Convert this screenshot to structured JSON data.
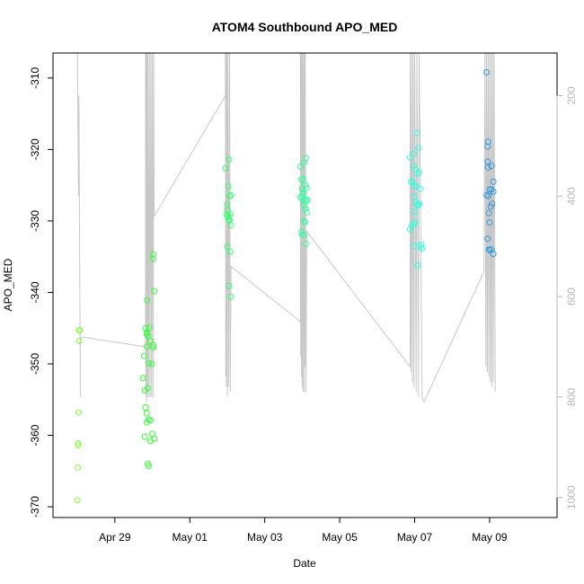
{
  "chart_data": {
    "type": "scatter",
    "title": "ATOM4 Southbound APO_MED",
    "xlabel": "Date",
    "ylabel": "APO_MED",
    "x_range_days": [
      -1.65,
      11.8
    ],
    "xticks": [
      {
        "label": "Apr 29",
        "day": 0
      },
      {
        "label": "May 01",
        "day": 2
      },
      {
        "label": "May 03",
        "day": 4
      },
      {
        "label": "May 05",
        "day": 6
      },
      {
        "label": "May 07",
        "day": 8
      },
      {
        "label": "May 09",
        "day": 10
      }
    ],
    "ylim": [
      -371.5,
      -306.5
    ],
    "yticks": [
      -370,
      -360,
      -350,
      -340,
      -330,
      -320,
      -310
    ],
    "right_axis": {
      "ticks": [
        200,
        400,
        600,
        800,
        1000
      ],
      "range_top_down": [
        115,
        1040
      ],
      "color": "#b8b8b8"
    },
    "colors": {
      "series_1": "#7fff33",
      "series_2": "#33ff33",
      "series_3": "#33ff66",
      "series_4": "#33ff99",
      "series_5": "#33ffdd",
      "series_6": "#3399dd",
      "pressure_line": "#c8c8c8"
    },
    "series": [
      {
        "color_key": "series_1",
        "points": [
          [
            -0.95,
            -345.3
          ],
          [
            -0.95,
            -346.8
          ],
          [
            -0.97,
            -356.8
          ],
          [
            -0.98,
            -361.1
          ],
          [
            -0.98,
            -361.4
          ],
          [
            -0.99,
            -364.5
          ],
          [
            -1.0,
            -369.1
          ],
          [
            -0.93,
            -345.3
          ]
        ]
      },
      {
        "color_key": "series_2",
        "points": [
          [
            0.85,
            -358.2
          ],
          [
            0.9,
            -357.8
          ],
          [
            0.95,
            -357.9
          ],
          [
            1.0,
            -359.8
          ],
          [
            0.8,
            -360.2
          ],
          [
            0.95,
            -360.8
          ],
          [
            1.05,
            -360.5
          ],
          [
            0.88,
            -364.0
          ],
          [
            0.9,
            -364.3
          ],
          [
            0.75,
            -352.0
          ],
          [
            0.8,
            -353.7
          ],
          [
            0.88,
            -353.4
          ],
          [
            0.82,
            -356.1
          ],
          [
            0.85,
            -356.9
          ],
          [
            0.78,
            -348.9
          ],
          [
            0.9,
            -349.9
          ],
          [
            0.99,
            -350.0
          ],
          [
            0.85,
            -347.6
          ],
          [
            0.95,
            -346.8
          ],
          [
            1.02,
            -347.4
          ],
          [
            1.03,
            -347.7
          ],
          [
            0.82,
            -345.0
          ],
          [
            0.85,
            -345.6
          ],
          [
            0.85,
            -345.8
          ],
          [
            0.88,
            -346.1
          ],
          [
            0.92,
            -344.9
          ],
          [
            0.86,
            -341.1
          ],
          [
            1.05,
            -339.8
          ],
          [
            1.02,
            -335.3
          ],
          [
            1.03,
            -334.7
          ]
        ]
      },
      {
        "color_key": "series_3",
        "points": [
          [
            2.95,
            -322.6
          ],
          [
            3.05,
            -321.4
          ],
          [
            3.0,
            -328.4
          ],
          [
            3.02,
            -329.3
          ],
          [
            2.98,
            -329.1
          ],
          [
            3.08,
            -329.0
          ],
          [
            3.03,
            -325.2
          ],
          [
            3.06,
            -326.5
          ],
          [
            3.1,
            -326.4
          ],
          [
            3.0,
            -327.7
          ],
          [
            3.06,
            -329.9
          ],
          [
            3.1,
            -330.6
          ],
          [
            3.0,
            -333.6
          ],
          [
            3.08,
            -334.3
          ],
          [
            3.05,
            -339.1
          ],
          [
            3.1,
            -340.6
          ],
          [
            3.02,
            -329.4
          ],
          [
            3.04,
            -329.8
          ]
        ]
      },
      {
        "color_key": "series_4",
        "points": [
          [
            4.95,
            -322.4
          ],
          [
            5.05,
            -321.8
          ],
          [
            5.1,
            -321.2
          ],
          [
            4.98,
            -324.2
          ],
          [
            5.0,
            -325.5
          ],
          [
            5.03,
            -326.0
          ],
          [
            5.08,
            -325.0
          ],
          [
            5.12,
            -325.4
          ],
          [
            4.95,
            -326.6
          ],
          [
            4.98,
            -326.8
          ],
          [
            5.02,
            -326.2
          ],
          [
            5.07,
            -327.3
          ],
          [
            5.1,
            -327.0
          ],
          [
            5.15,
            -327.1
          ],
          [
            5.05,
            -327.8
          ],
          [
            5.08,
            -328.3
          ],
          [
            5.12,
            -328.8
          ],
          [
            5.06,
            -330.0
          ],
          [
            5.07,
            -330.2
          ],
          [
            4.98,
            -331.5
          ],
          [
            5.0,
            -331.9
          ],
          [
            5.05,
            -332.0
          ],
          [
            5.1,
            -333.2
          ],
          [
            5.02,
            -324.1
          ]
        ]
      },
      {
        "color_key": "series_5",
        "points": [
          [
            7.88,
            -321.1
          ],
          [
            7.97,
            -320.6
          ],
          [
            8.1,
            -319.8
          ],
          [
            8.07,
            -317.7
          ],
          [
            7.97,
            -322.3
          ],
          [
            8.03,
            -322.8
          ],
          [
            8.08,
            -323.4
          ],
          [
            8.12,
            -323.2
          ],
          [
            7.95,
            -324.5
          ],
          [
            7.98,
            -325.0
          ],
          [
            8.05,
            -325.2
          ],
          [
            8.15,
            -325.5
          ],
          [
            7.9,
            -324.5
          ],
          [
            8.0,
            -326.6
          ],
          [
            8.03,
            -327.4
          ],
          [
            8.07,
            -327.8
          ],
          [
            8.1,
            -327.8
          ],
          [
            8.12,
            -327.6
          ],
          [
            8.0,
            -328.7
          ],
          [
            7.92,
            -330.7
          ],
          [
            7.88,
            -331.2
          ],
          [
            7.98,
            -330.4
          ],
          [
            8.02,
            -330.1
          ],
          [
            7.98,
            -333.5
          ],
          [
            8.15,
            -333.6
          ],
          [
            8.18,
            -333.3
          ],
          [
            8.2,
            -333.9
          ],
          [
            8.08,
            -336.2
          ]
        ]
      },
      {
        "color_key": "series_6",
        "points": [
          [
            9.92,
            -309.2
          ],
          [
            9.96,
            -318.9
          ],
          [
            9.95,
            -319.6
          ],
          [
            9.95,
            -321.7
          ],
          [
            9.96,
            -322.5
          ],
          [
            10.05,
            -322.3
          ],
          [
            10.0,
            -325.6
          ],
          [
            10.05,
            -325.6
          ],
          [
            10.1,
            -324.5
          ],
          [
            10.1,
            -325.9
          ],
          [
            9.92,
            -326.4
          ],
          [
            9.97,
            -326.5
          ],
          [
            10.07,
            -327.6
          ],
          [
            10.03,
            -328.0
          ],
          [
            9.98,
            -328.9
          ],
          [
            10.0,
            -330.2
          ],
          [
            9.95,
            -332.5
          ],
          [
            9.98,
            -334.0
          ],
          [
            10.05,
            -334.0
          ],
          [
            10.1,
            -334.6
          ],
          [
            10.0,
            -334.1
          ]
        ]
      }
    ],
    "pressure_profile_vertices": [
      [
        -1.0,
        100
      ],
      [
        -0.97,
        400
      ],
      [
        -0.96,
        200
      ],
      [
        -0.92,
        800
      ],
      [
        -0.92,
        680
      ],
      [
        0.82,
        700
      ],
      [
        0.82,
        100
      ],
      [
        0.83,
        800
      ],
      [
        0.84,
        100
      ],
      [
        0.85,
        810
      ],
      [
        0.86,
        100
      ],
      [
        0.87,
        790
      ],
      [
        0.88,
        100
      ],
      [
        0.9,
        800
      ],
      [
        0.92,
        100
      ],
      [
        0.94,
        800
      ],
      [
        0.96,
        100
      ],
      [
        0.98,
        800
      ],
      [
        1.0,
        100
      ],
      [
        1.02,
        800
      ],
      [
        1.04,
        100
      ],
      [
        1.05,
        440
      ],
      [
        2.95,
        200
      ],
      [
        2.95,
        100
      ],
      [
        2.96,
        760
      ],
      [
        2.97,
        100
      ],
      [
        2.98,
        780
      ],
      [
        2.99,
        100
      ],
      [
        3.0,
        800
      ],
      [
        3.02,
        100
      ],
      [
        3.04,
        780
      ],
      [
        3.06,
        100
      ],
      [
        3.08,
        790
      ],
      [
        3.1,
        540
      ],
      [
        4.95,
        650
      ],
      [
        4.95,
        100
      ],
      [
        4.96,
        720
      ],
      [
        4.97,
        100
      ],
      [
        4.98,
        760
      ],
      [
        4.99,
        100
      ],
      [
        5.0,
        780
      ],
      [
        5.01,
        100
      ],
      [
        5.02,
        790
      ],
      [
        5.04,
        100
      ],
      [
        5.05,
        790
      ],
      [
        5.06,
        100
      ],
      [
        5.07,
        740
      ],
      [
        5.08,
        100
      ],
      [
        5.1,
        790
      ],
      [
        5.12,
        470
      ],
      [
        7.88,
        740
      ],
      [
        7.88,
        100
      ],
      [
        7.9,
        750
      ],
      [
        7.92,
        100
      ],
      [
        7.94,
        770
      ],
      [
        7.96,
        100
      ],
      [
        7.98,
        780
      ],
      [
        8.0,
        100
      ],
      [
        8.04,
        790
      ],
      [
        8.06,
        100
      ],
      [
        8.1,
        800
      ],
      [
        8.12,
        100
      ],
      [
        8.2,
        800
      ],
      [
        8.25,
        810
      ],
      [
        9.85,
        550
      ],
      [
        9.88,
        100
      ],
      [
        9.9,
        740
      ],
      [
        9.92,
        100
      ],
      [
        9.94,
        750
      ],
      [
        9.96,
        100
      ],
      [
        9.98,
        760
      ],
      [
        10.0,
        100
      ],
      [
        10.02,
        770
      ],
      [
        10.04,
        100
      ],
      [
        10.06,
        780
      ],
      [
        10.08,
        100
      ],
      [
        10.1,
        770
      ],
      [
        10.12,
        100
      ],
      [
        10.15,
        790
      ]
    ]
  }
}
